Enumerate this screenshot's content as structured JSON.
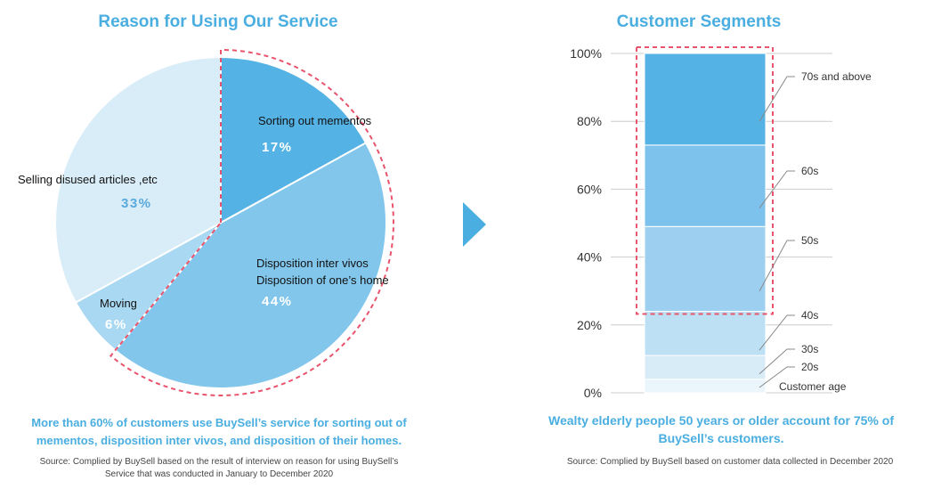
{
  "pie": {
    "title": "Reason for Using Our Service",
    "caption_line1": "More than 60% of customers use BuySell’s service for sorting  out of",
    "caption_line2": "mementos, disposition inter vivos, and disposition  of their homes.",
    "source_line1": "Source: Complied  by BuySell based on the result of interview  on reason for using BuySell’s",
    "source_line2": "Service that was conducted in January to December 2020"
  },
  "bar": {
    "title": "Customer Segments",
    "caption_line1": "Wealty elderly people 50 years or older account for 75% of",
    "caption_line2": "BuySell’s customers.",
    "source": "Source: Complied  by  BuySell  based on customer data collected in December 2020"
  },
  "colors": {
    "accent": "#4aaee0",
    "highlight_border": "#e8546c",
    "pie_slices": [
      "#55b2e4",
      "#82c6ec",
      "#a9d8f2",
      "#d9edf9"
    ],
    "bar_segments": [
      "#eaf5fc",
      "#d8ecf8",
      "#bde0f4",
      "#9dd0f0",
      "#7dc2ec",
      "#55b2e4"
    ]
  },
  "chart_data": [
    {
      "type": "pie",
      "title": "Reason for Using Our Service",
      "slices": [
        {
          "label": "Sorting out mementos",
          "value": 17,
          "value_label": "17%"
        },
        {
          "label_lines": [
            "Disposition inter vivos",
            "Disposition of one’s home"
          ],
          "value": 44,
          "value_label": "44%"
        },
        {
          "label": "Moving",
          "value": 6,
          "value_label": "6%"
        },
        {
          "label": "Selling disused articles ,etc",
          "value": 33,
          "value_label": "33%"
        }
      ],
      "highlighted": [
        "Sorting out mementos",
        "Disposition inter vivos / Disposition of one’s home"
      ]
    },
    {
      "type": "bar",
      "stacked": true,
      "title": "Customer Segments",
      "ylim": [
        0,
        100
      ],
      "yticks": [
        "0%",
        "20%",
        "40%",
        "60%",
        "80%",
        "100%"
      ],
      "grid": true,
      "legend_title": "Customer age",
      "segments": [
        {
          "name": "20s",
          "value": 4
        },
        {
          "name": "30s",
          "value": 7
        },
        {
          "name": "40s",
          "value": 13
        },
        {
          "name": "50s",
          "value": 25
        },
        {
          "name": "60s",
          "value": 24
        },
        {
          "name": "70s and above",
          "value": 27
        }
      ],
      "highlighted_from": "50s"
    }
  ]
}
